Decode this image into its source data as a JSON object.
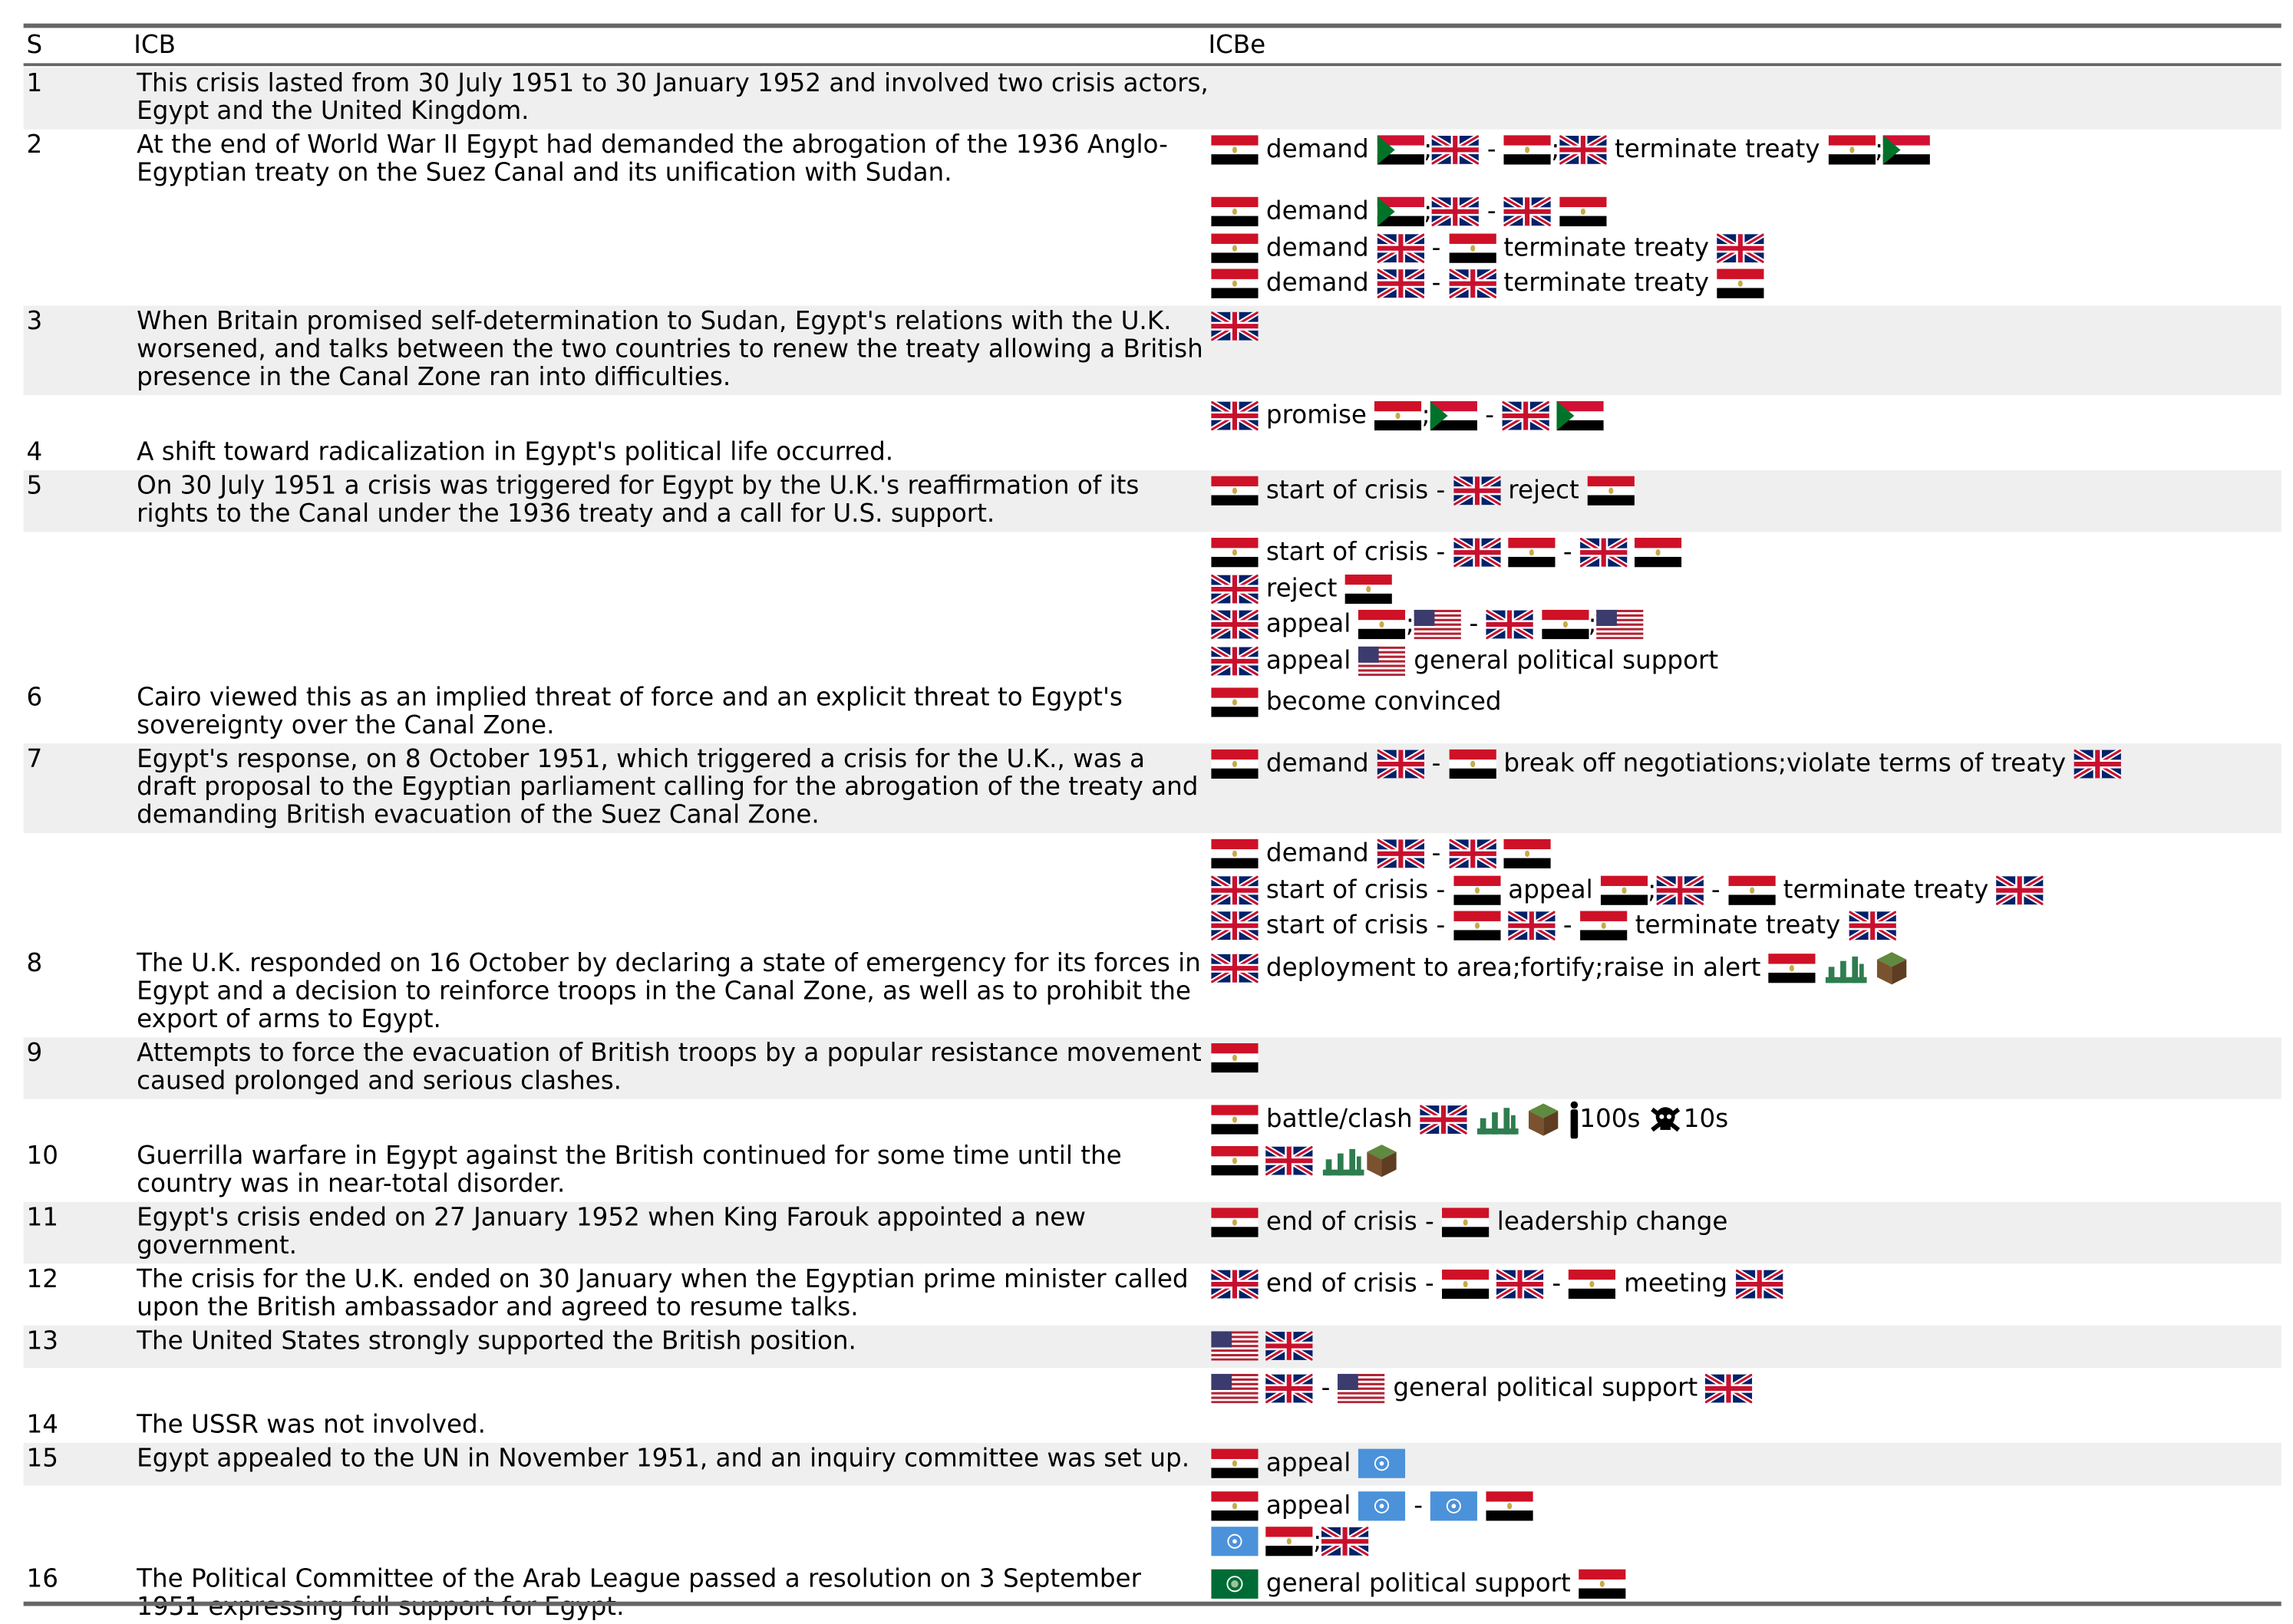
{
  "headers": {
    "s": "S",
    "icb": "ICB",
    "icbe": "ICBe"
  },
  "colors": {
    "rule": "#666666",
    "shade": "#efefef"
  },
  "rows": [
    {
      "s": "1",
      "icb": "This crisis lasted from 30 July 1951 to 30 January 1952 and involved two crisis actors, Egypt and the United Kingdom.",
      "shade": true,
      "events": []
    },
    {
      "s": "2",
      "icb": "At the end of World War II Egypt had demanded the abrogation of the 1936 Anglo-Egyptian treaty on the Suez Canal and its unification with Sudan.",
      "shade": false,
      "events": [
        [
          {
            "i": "EG"
          },
          {
            "t": " demand "
          },
          {
            "i": "SD"
          },
          {
            "t": ";"
          },
          {
            "i": "GB"
          },
          {
            "t": " - "
          },
          {
            "i": "EG"
          },
          {
            "t": ";"
          },
          {
            "i": "GB"
          },
          {
            "t": " terminate treaty "
          },
          {
            "i": "EG"
          },
          {
            "t": ";"
          },
          {
            "i": "SD"
          }
        ]
      ]
    },
    {
      "s": "",
      "icb": "",
      "shade": false,
      "events": [
        [
          {
            "i": "EG"
          },
          {
            "t": " demand "
          },
          {
            "i": "SD"
          },
          {
            "t": ";"
          },
          {
            "i": "GB"
          },
          {
            "t": " - "
          },
          {
            "i": "GB"
          },
          {
            "t": " "
          },
          {
            "i": "EG"
          }
        ],
        [
          {
            "i": "EG"
          },
          {
            "t": " demand "
          },
          {
            "i": "GB"
          },
          {
            "t": " - "
          },
          {
            "i": "EG"
          },
          {
            "t": " terminate treaty "
          },
          {
            "i": "GB"
          }
        ],
        [
          {
            "i": "EG"
          },
          {
            "t": " demand "
          },
          {
            "i": "GB"
          },
          {
            "t": " - "
          },
          {
            "i": "GB"
          },
          {
            "t": " terminate treaty "
          },
          {
            "i": "EG"
          }
        ]
      ]
    },
    {
      "s": "3",
      "icb": "When Britain promised self-determination to Sudan, Egypt's relations with the U.K. worsened, and talks between the two countries to renew the treaty allowing a British presence in the Canal Zone ran into difficulties.",
      "shade": true,
      "events": [
        [
          {
            "i": "GB"
          }
        ]
      ]
    },
    {
      "s": "",
      "icb": "",
      "shade": false,
      "events": [
        [
          {
            "i": "GB"
          },
          {
            "t": " promise "
          },
          {
            "i": "EG"
          },
          {
            "t": ";"
          },
          {
            "i": "SD"
          },
          {
            "t": " - "
          },
          {
            "i": "GB"
          },
          {
            "t": " "
          },
          {
            "i": "SD"
          }
        ]
      ]
    },
    {
      "s": "4",
      "icb": "A shift toward radicalization in Egypt's political life occurred.",
      "shade": false,
      "events": []
    },
    {
      "s": "5",
      "icb": "On 30 July 1951 a crisis was triggered for Egypt by the U.K.'s reaffirmation of its rights to the Canal under the 1936 treaty and a call for U.S. support.",
      "shade": true,
      "events": [
        [
          {
            "i": "EG"
          },
          {
            "t": " start of crisis - "
          },
          {
            "i": "GB"
          },
          {
            "t": " reject "
          },
          {
            "i": "EG"
          }
        ]
      ]
    },
    {
      "s": "",
      "icb": "",
      "shade": false,
      "events": [
        [
          {
            "i": "EG"
          },
          {
            "t": " start of crisis - "
          },
          {
            "i": "GB"
          },
          {
            "t": " "
          },
          {
            "i": "EG"
          },
          {
            "t": " - "
          },
          {
            "i": "GB"
          },
          {
            "t": " "
          },
          {
            "i": "EG"
          }
        ],
        [
          {
            "i": "GB"
          },
          {
            "t": " reject "
          },
          {
            "i": "EG"
          }
        ],
        [
          {
            "i": "GB"
          },
          {
            "t": " appeal "
          },
          {
            "i": "EG"
          },
          {
            "t": ";"
          },
          {
            "i": "US"
          },
          {
            "t": " - "
          },
          {
            "i": "GB"
          },
          {
            "t": " "
          },
          {
            "i": "EG"
          },
          {
            "t": ";"
          },
          {
            "i": "US"
          }
        ],
        [
          {
            "i": "GB"
          },
          {
            "t": " appeal "
          },
          {
            "i": "US"
          },
          {
            "t": " general political support"
          }
        ]
      ]
    },
    {
      "s": "6",
      "icb": "Cairo viewed this as an implied threat of force and an explicit threat to Egypt's sovereignty over the Canal Zone.",
      "shade": false,
      "events": [
        [
          {
            "i": "EG"
          },
          {
            "t": " become convinced"
          }
        ]
      ]
    },
    {
      "s": "7",
      "icb": "Egypt's response, on 8 October 1951, which triggered a crisis for the U.K., was a draft proposal to the Egyptian parliament calling for the abrogation of the treaty and demanding British evacuation of the Suez Canal Zone.",
      "shade": true,
      "events": [
        [
          {
            "i": "EG"
          },
          {
            "t": " demand "
          },
          {
            "i": "GB"
          },
          {
            "t": " - "
          },
          {
            "i": "EG"
          },
          {
            "t": " break off negotiations;violate terms of treaty "
          },
          {
            "i": "GB"
          }
        ]
      ]
    },
    {
      "s": "",
      "icb": "",
      "shade": false,
      "events": [
        [
          {
            "i": "EG"
          },
          {
            "t": " demand "
          },
          {
            "i": "GB"
          },
          {
            "t": " - "
          },
          {
            "i": "GB"
          },
          {
            "t": " "
          },
          {
            "i": "EG"
          }
        ],
        [
          {
            "i": "GB"
          },
          {
            "t": " start of crisis - "
          },
          {
            "i": "EG"
          },
          {
            "t": " appeal "
          },
          {
            "i": "EG"
          },
          {
            "t": ";"
          },
          {
            "i": "GB"
          },
          {
            "t": " - "
          },
          {
            "i": "EG"
          },
          {
            "t": " terminate treaty "
          },
          {
            "i": "GB"
          }
        ],
        [
          {
            "i": "GB"
          },
          {
            "t": " start of crisis - "
          },
          {
            "i": "EG"
          },
          {
            "t": " "
          },
          {
            "i": "GB"
          },
          {
            "t": " - "
          },
          {
            "i": "EG"
          },
          {
            "t": " terminate treaty "
          },
          {
            "i": "GB"
          }
        ]
      ]
    },
    {
      "s": "8",
      "icb": "The U.K. responded on 16 October by declaring a state of emergency for its forces in Egypt and a decision to reinforce troops in the Canal Zone, as well as to prohibit the export of arms to Egypt.",
      "shade": false,
      "events": [
        [
          {
            "i": "GB"
          },
          {
            "t": " deployment to area;fortify;raise in alert "
          },
          {
            "i": "EG"
          },
          {
            "t": " "
          },
          {
            "i": "troops"
          },
          {
            "t": " "
          },
          {
            "i": "terrain"
          }
        ]
      ]
    },
    {
      "s": "9",
      "icb": "Attempts to force the evacuation of British troops by a popular resistance movement caused prolonged and serious clashes.",
      "shade": true,
      "events": [
        [
          {
            "i": "EG"
          }
        ]
      ]
    },
    {
      "s": "",
      "icb": "",
      "shade": false,
      "events": [
        [
          {
            "i": "EG"
          },
          {
            "t": " battle/clash "
          },
          {
            "i": "GB"
          },
          {
            "t": " "
          },
          {
            "i": "troops"
          },
          {
            "t": " "
          },
          {
            "i": "terrain"
          },
          {
            "t": " "
          },
          {
            "i": "person"
          },
          {
            "t": "100s "
          },
          {
            "i": "skull"
          },
          {
            "t": "10s"
          }
        ]
      ]
    },
    {
      "s": "10",
      "icb": "Guerrilla warfare in Egypt against the British continued for some time until the country was in near-total disorder.",
      "shade": false,
      "events": [
        [
          {
            "i": "EG"
          },
          {
            "t": " "
          },
          {
            "i": "GB"
          },
          {
            "t": " "
          },
          {
            "i": "troops"
          },
          {
            "i": "terrain"
          }
        ]
      ]
    },
    {
      "s": "11",
      "icb": "Egypt's crisis ended on 27 January 1952 when King Farouk appointed a new government.",
      "shade": true,
      "events": [
        [
          {
            "i": "EG"
          },
          {
            "t": " end of crisis - "
          },
          {
            "i": "EG"
          },
          {
            "t": " leadership change"
          }
        ]
      ]
    },
    {
      "s": "12",
      "icb": "The crisis for the U.K. ended on 30 January when the Egyptian prime minister called upon the British ambassador and agreed to resume talks.",
      "shade": false,
      "events": [
        [
          {
            "i": "GB"
          },
          {
            "t": " end of crisis - "
          },
          {
            "i": "EG"
          },
          {
            "t": " "
          },
          {
            "i": "GB"
          },
          {
            "t": " - "
          },
          {
            "i": "EG"
          },
          {
            "t": " meeting "
          },
          {
            "i": "GB"
          }
        ]
      ]
    },
    {
      "s": "13",
      "icb": "The United States strongly supported the British position.",
      "shade": true,
      "events": [
        [
          {
            "i": "US"
          },
          {
            "t": " "
          },
          {
            "i": "GB"
          }
        ]
      ]
    },
    {
      "s": "",
      "icb": "",
      "shade": false,
      "events": [
        [
          {
            "i": "US"
          },
          {
            "t": " "
          },
          {
            "i": "GB"
          },
          {
            "t": " - "
          },
          {
            "i": "US"
          },
          {
            "t": " general political support "
          },
          {
            "i": "GB"
          }
        ]
      ]
    },
    {
      "s": "14",
      "icb": "The USSR was not involved.",
      "shade": false,
      "events": []
    },
    {
      "s": "15",
      "icb": "Egypt appealed to the UN in November 1951, and an inquiry committee was set up.",
      "shade": true,
      "events": [
        [
          {
            "i": "EG"
          },
          {
            "t": " appeal "
          },
          {
            "i": "UN"
          }
        ]
      ]
    },
    {
      "s": "",
      "icb": "",
      "shade": false,
      "events": [
        [
          {
            "i": "EG"
          },
          {
            "t": " appeal "
          },
          {
            "i": "UN"
          },
          {
            "t": " - "
          },
          {
            "i": "UN"
          },
          {
            "t": " "
          },
          {
            "i": "EG"
          }
        ],
        [
          {
            "i": "UN"
          },
          {
            "t": " "
          },
          {
            "i": "EG"
          },
          {
            "t": ";"
          },
          {
            "i": "GB"
          }
        ]
      ]
    },
    {
      "s": "16",
      "icb": "The Political Committee of the Arab League passed a resolution on 3 September 1951 expressing full support for Egypt.",
      "shade": false,
      "events": [
        [
          {
            "i": "AL"
          },
          {
            "t": " general political support "
          },
          {
            "i": "EG"
          }
        ]
      ]
    }
  ]
}
